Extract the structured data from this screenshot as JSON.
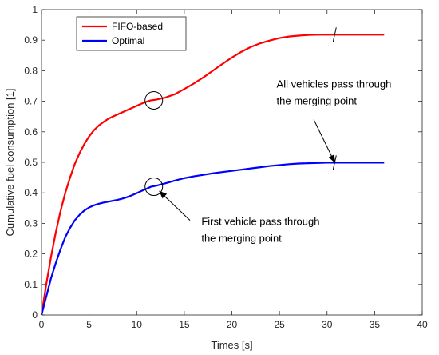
{
  "chart_data": {
    "type": "line",
    "xlabel": "Times [s]",
    "ylabel": "Cumulative fuel consumption [1]",
    "xlim": [
      0,
      40
    ],
    "ylim": [
      0,
      1
    ],
    "xticks": [
      0,
      5,
      10,
      15,
      20,
      25,
      30,
      35,
      40
    ],
    "yticks": [
      0,
      0.1,
      0.2,
      0.3,
      0.4,
      0.5,
      0.6,
      0.7,
      0.8,
      0.9,
      1
    ],
    "xtick_labels": [
      "0",
      "5",
      "10",
      "15",
      "20",
      "25",
      "30",
      "35",
      "40"
    ],
    "ytick_labels": [
      "0",
      "0.1",
      "0.2",
      "0.3",
      "0.4",
      "0.5",
      "0.6",
      "0.7",
      "0.8",
      "0.9",
      "1"
    ],
    "grid": false,
    "legend": "top-left",
    "series": [
      {
        "name": "FIFO-based",
        "color": "#ff0000",
        "x": [
          0,
          0.5,
          1,
          1.5,
          2,
          2.5,
          3,
          3.5,
          4,
          4.5,
          5,
          5.5,
          6,
          6.5,
          7,
          7.5,
          8,
          8.5,
          9,
          9.5,
          10,
          10.5,
          11,
          11.5,
          12,
          13,
          14,
          15,
          16,
          17,
          18,
          19,
          20,
          21,
          22,
          23,
          24,
          25,
          26,
          27,
          28,
          29,
          30,
          31,
          32,
          33,
          34,
          35,
          36
        ],
        "y": [
          0.0,
          0.1,
          0.19,
          0.27,
          0.34,
          0.4,
          0.45,
          0.495,
          0.53,
          0.56,
          0.585,
          0.605,
          0.62,
          0.632,
          0.642,
          0.65,
          0.657,
          0.664,
          0.671,
          0.678,
          0.685,
          0.692,
          0.698,
          0.703,
          0.705,
          0.712,
          0.723,
          0.74,
          0.758,
          0.778,
          0.8,
          0.822,
          0.843,
          0.862,
          0.878,
          0.89,
          0.899,
          0.907,
          0.912,
          0.915,
          0.917,
          0.918,
          0.918,
          0.918,
          0.918,
          0.918,
          0.918,
          0.918,
          0.918
        ]
      },
      {
        "name": "Optimal",
        "color": "#0000ff",
        "x": [
          0,
          0.5,
          1,
          1.5,
          2,
          2.5,
          3,
          3.5,
          4,
          4.5,
          5,
          5.5,
          6,
          6.5,
          7,
          7.5,
          8,
          8.5,
          9,
          9.5,
          10,
          10.5,
          11,
          11.5,
          12,
          13,
          14,
          15,
          16,
          17,
          18,
          19,
          20,
          21,
          22,
          23,
          24,
          25,
          26,
          27,
          28,
          29,
          30,
          31,
          32,
          33,
          34,
          35,
          36
        ],
        "y": [
          0.0,
          0.06,
          0.12,
          0.17,
          0.215,
          0.255,
          0.285,
          0.31,
          0.328,
          0.342,
          0.352,
          0.359,
          0.364,
          0.368,
          0.371,
          0.374,
          0.377,
          0.381,
          0.386,
          0.392,
          0.399,
          0.406,
          0.413,
          0.42,
          0.423,
          0.431,
          0.44,
          0.448,
          0.454,
          0.459,
          0.464,
          0.468,
          0.472,
          0.476,
          0.48,
          0.484,
          0.488,
          0.491,
          0.494,
          0.496,
          0.497,
          0.498,
          0.499,
          0.499,
          0.499,
          0.499,
          0.499,
          0.499,
          0.499
        ]
      }
    ],
    "circle_markers": [
      {
        "x": 11.8,
        "y": 0.703
      },
      {
        "x": 11.8,
        "y": 0.42
      }
    ],
    "tick_markers": [
      {
        "x": 30.8,
        "y": 0.918
      },
      {
        "x": 30.8,
        "y": 0.499
      }
    ],
    "annotations": [
      {
        "lines": [
          "All vehicles pass through",
          "the merging point"
        ],
        "text_x": 24.7,
        "text_y": 0.745,
        "arrow_from": [
          28.6,
          0.64
        ],
        "arrow_to": [
          30.8,
          0.5
        ]
      },
      {
        "lines": [
          "First vehicle pass through",
          "the merging point"
        ],
        "text_x": 16.8,
        "text_y": 0.295,
        "arrow_from": [
          15.6,
          0.31
        ],
        "arrow_to": [
          12.4,
          0.405
        ]
      }
    ]
  }
}
